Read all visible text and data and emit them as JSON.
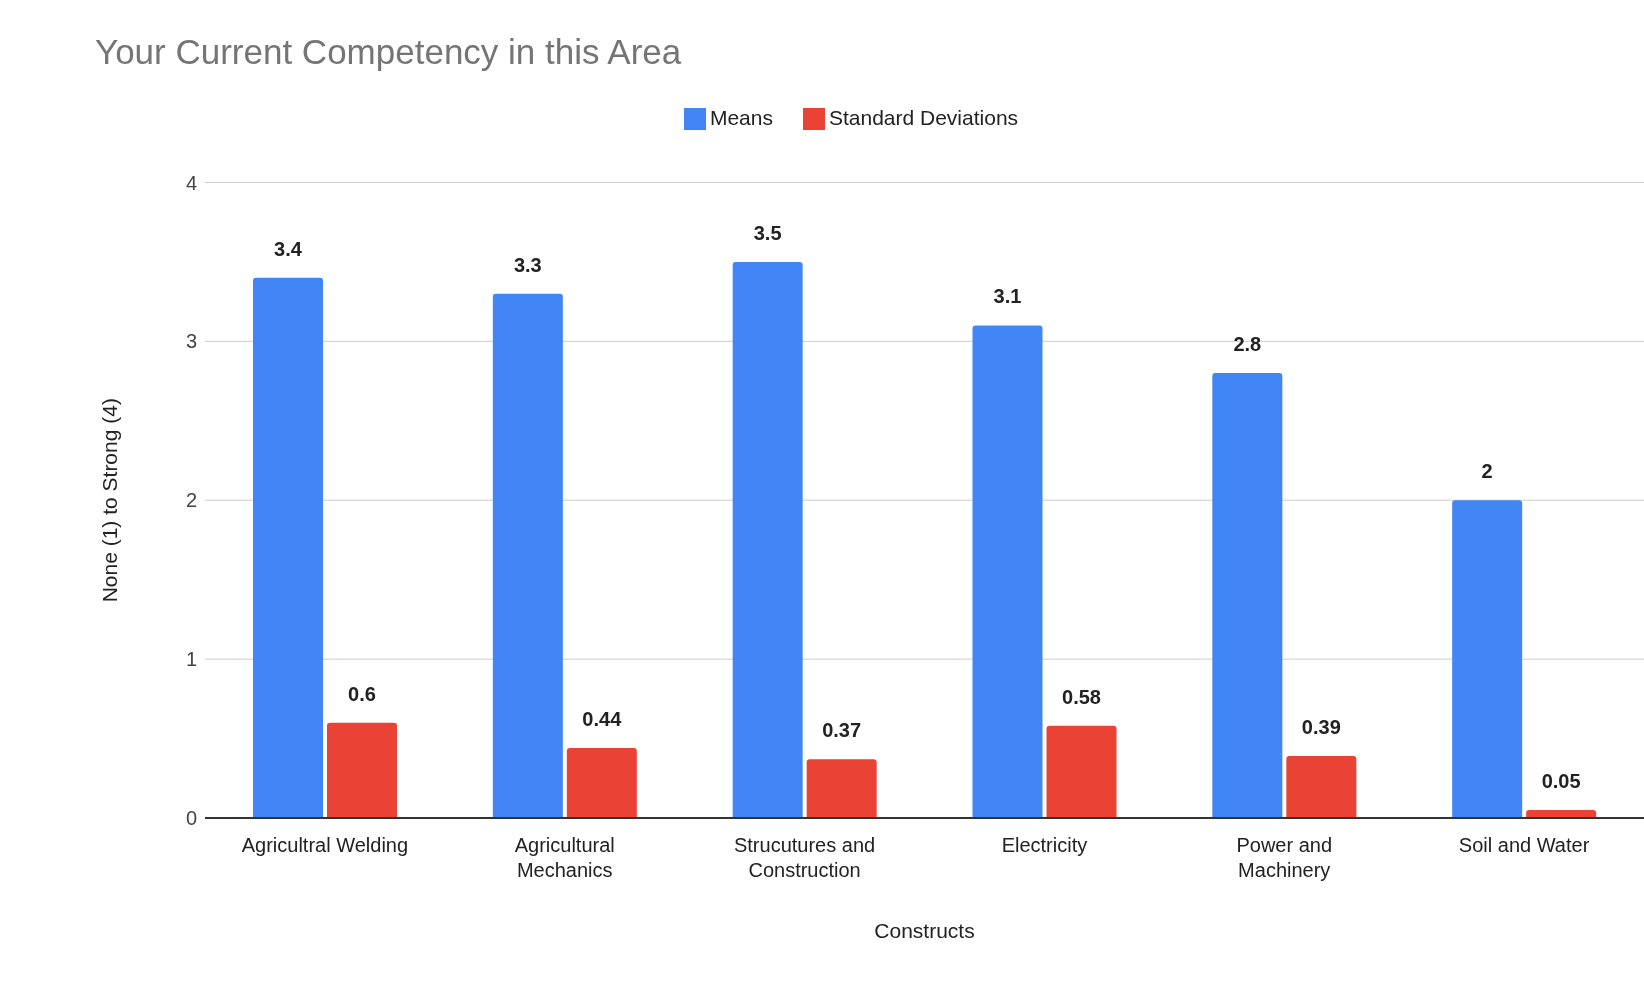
{
  "chart_data": {
    "type": "bar",
    "title": "Your Current Competency in this Area",
    "xlabel": "Constructs",
    "ylabel": "None (1) to Strong (4)",
    "categories": [
      "Agricultral Welding",
      "Agricultural Mechanics",
      "Strucutures and Construction",
      "Electricity",
      "Power and Machinery",
      "Soil and Water"
    ],
    "series": [
      {
        "name": "Means",
        "color": "#4285f4",
        "values": [
          3.4,
          3.3,
          3.5,
          3.1,
          2.8,
          2
        ]
      },
      {
        "name": "Standard Deviations",
        "color": "#ea4335",
        "values": [
          0.6,
          0.44,
          0.37,
          0.58,
          0.39,
          0.05
        ]
      }
    ],
    "ylim": [
      0,
      4
    ],
    "yticks": [
      0,
      1,
      2,
      3,
      4
    ],
    "grid": "y",
    "legend": "top",
    "data_labels": true
  }
}
